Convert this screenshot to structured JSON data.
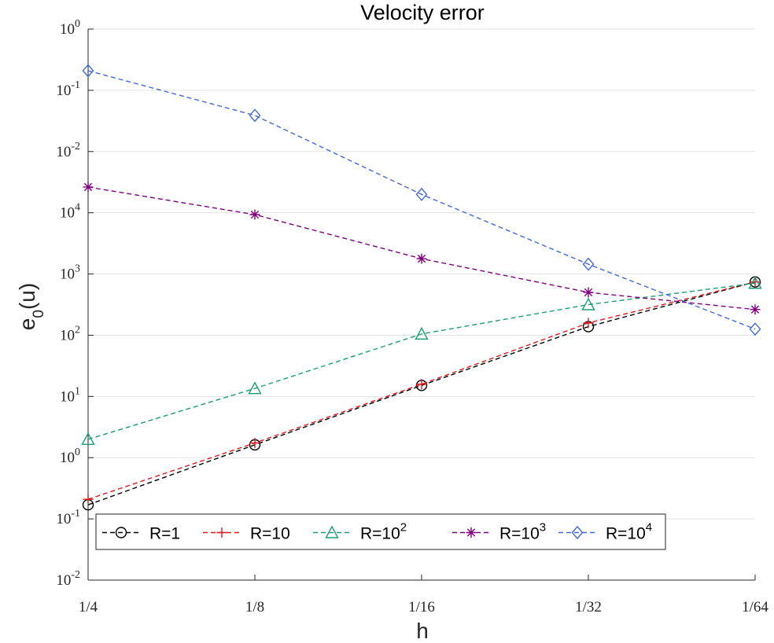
{
  "chart_data": {
    "type": "line",
    "title": "Velocity error",
    "xlabel": "h",
    "ylabel_base": "e",
    "ylabel_sub": "0",
    "ylabel_rest": "(u)",
    "categories": [
      "1/4",
      "1/8",
      "1/16",
      "1/32",
      "1/64"
    ],
    "y_tick_labels": [
      {
        "base": "10",
        "exp": "-2"
      },
      {
        "base": "10",
        "exp": "-1"
      },
      {
        "base": "10",
        "exp": "0"
      },
      {
        "base": "10",
        "exp": "1"
      },
      {
        "base": "10",
        "exp": "2"
      },
      {
        "base": "10",
        "exp": "3"
      },
      {
        "base": "10",
        "exp": "4"
      },
      {
        "base": "10",
        "exp": "-2"
      },
      {
        "base": "10",
        "exp": "-1"
      },
      {
        "base": "10",
        "exp": "0"
      }
    ],
    "y_tick_level_range": [
      0,
      9
    ],
    "grid": "horizontal",
    "legend_position": "bottom",
    "series": [
      {
        "name_base": "R=1",
        "name_exp": "",
        "color": "#000000",
        "marker": "circle",
        "values": [
          1.23,
          2.21,
          3.18,
          4.14,
          4.87
        ]
      },
      {
        "name_base": "R=10",
        "name_exp": "",
        "color": "#e41a1c",
        "marker": "plus",
        "values": [
          1.32,
          2.24,
          3.2,
          4.2,
          4.87
        ]
      },
      {
        "name_base": "R=10",
        "name_exp": "2",
        "color": "#1a9e77",
        "marker": "triangle",
        "values": [
          2.3,
          3.13,
          4.02,
          4.5,
          4.85
        ]
      },
      {
        "name_base": "R=10",
        "name_exp": "3",
        "color": "#800080",
        "marker": "asterisk",
        "values": [
          6.42,
          5.97,
          5.25,
          4.7,
          4.42
        ]
      },
      {
        "name_base": "R=10",
        "name_exp": "4",
        "color": "#4169e1",
        "marker": "diamond",
        "values": [
          8.32,
          7.59,
          6.3,
          5.16,
          4.1
        ]
      }
    ]
  }
}
